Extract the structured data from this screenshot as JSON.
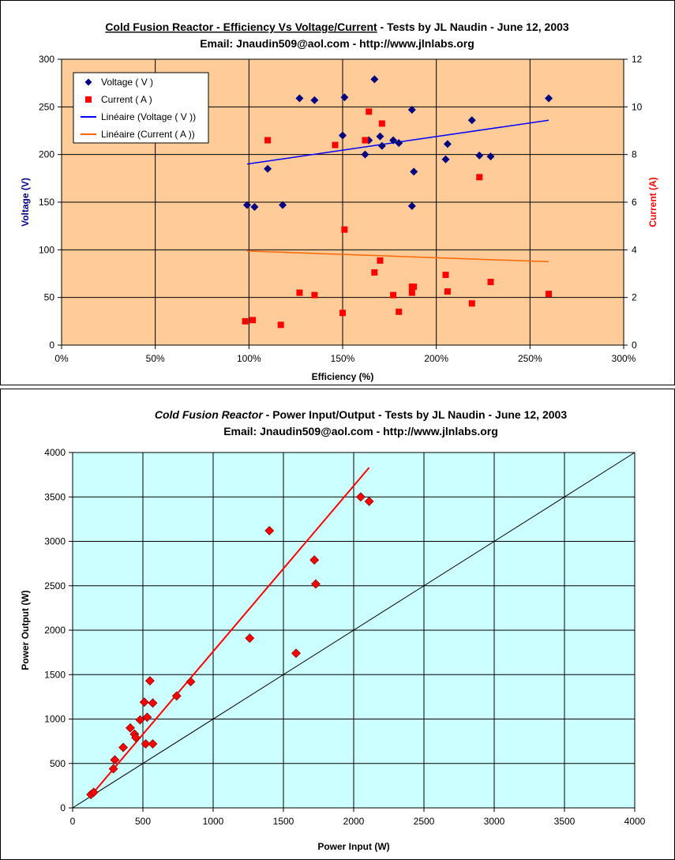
{
  "chart_data": [
    {
      "type": "scatter",
      "title_parts": [
        {
          "text": "Cold Fusion Reactor - Efficiency Vs Voltage/Current",
          "style": "underline"
        },
        {
          "text": " - Tests by JL Naudin - June 12, 2003",
          "style": "normal"
        }
      ],
      "subtitle": "Email: Jnaudin509@aol.com - http://www.jlnlabs.org",
      "xlabel": "Efficiency (%)",
      "ylabel": "Voltage (V)",
      "y2label": "Current (A)",
      "xlim": [
        0,
        300
      ],
      "ylim": [
        0,
        300
      ],
      "y2lim": [
        0,
        12
      ],
      "xticks": [
        0,
        50,
        100,
        150,
        200,
        250,
        300
      ],
      "xtick_labels": [
        "0%",
        "50%",
        "100%",
        "150%",
        "200%",
        "250%",
        "300%"
      ],
      "yticks": [
        0,
        50,
        100,
        150,
        200,
        250,
        300
      ],
      "y2ticks": [
        0,
        2,
        4,
        6,
        8,
        10,
        12
      ],
      "grid": true,
      "plot_bg": "#FFCC99",
      "legend_position": "top-left",
      "series": [
        {
          "name": "Voltage ( V )",
          "axis": "y",
          "marker": "diamond",
          "color": "#000080",
          "x": [
            99,
            103,
            110,
            118,
            127,
            135,
            150,
            151,
            162,
            164,
            167,
            170,
            171,
            177,
            180,
            187,
            187,
            188,
            205,
            206,
            219,
            223,
            229,
            260
          ],
          "y": [
            147,
            145,
            185,
            147,
            259,
            257,
            220,
            260,
            200,
            215,
            279,
            219,
            209,
            215,
            212,
            146,
            247,
            182,
            195,
            211,
            236,
            199,
            198,
            259
          ]
        },
        {
          "name": "Current ( A )",
          "axis": "y2",
          "marker": "square",
          "color": "#FF0000",
          "x": [
            98,
            102,
            110,
            117,
            127,
            135,
            146,
            150,
            151,
            162,
            164,
            167,
            170,
            171,
            177,
            180,
            187,
            187,
            188,
            205,
            206,
            219,
            223,
            229,
            260
          ],
          "y": [
            1.0,
            1.05,
            8.6,
            0.85,
            2.2,
            2.1,
            8.4,
            1.35,
            4.85,
            8.6,
            9.8,
            3.05,
            3.55,
            9.3,
            2.1,
            1.4,
            2.45,
            2.2,
            2.45,
            2.95,
            2.25,
            1.75,
            7.05,
            2.65,
            2.15
          ]
        },
        {
          "name": "Linéaire (Voltage ( V ))",
          "axis": "y",
          "type": "trendline",
          "color": "#0000FF",
          "x": [
            99,
            260
          ],
          "y": [
            190,
            236
          ]
        },
        {
          "name": "Linéaire (Current ( A ))",
          "axis": "y2",
          "type": "trendline",
          "color": "#FF6600",
          "x": [
            99,
            260
          ],
          "y": [
            3.95,
            3.5
          ]
        }
      ]
    },
    {
      "type": "scatter",
      "title_parts": [
        {
          "text": "Cold Fusion Reactor",
          "style": "italic"
        },
        {
          "text": "  - Power Input/Output - Tests by JL Naudin - June 12, 2003",
          "style": "normal"
        }
      ],
      "subtitle": "Email: Jnaudin509@aol.com - http://www.jlnlabs.org",
      "xlabel": "Power Input (W)",
      "ylabel": "Power Output (W)",
      "xlim": [
        0,
        4000
      ],
      "ylim": [
        0,
        4000
      ],
      "xticks": [
        0,
        500,
        1000,
        1500,
        2000,
        2500,
        3000,
        3500,
        4000
      ],
      "yticks": [
        0,
        500,
        1000,
        1500,
        2000,
        2500,
        3000,
        3500,
        4000
      ],
      "grid": true,
      "plot_bg": "#CCFFFF",
      "series": [
        {
          "marker": "diamond",
          "color": "#FF0000",
          "x": [
            130,
            150,
            290,
            300,
            360,
            410,
            440,
            450,
            480,
            510,
            520,
            530,
            550,
            570,
            570,
            740,
            840,
            1260,
            1400,
            1590,
            1720,
            1730,
            2050,
            2110
          ],
          "y": [
            150,
            175,
            440,
            540,
            680,
            900,
            830,
            790,
            990,
            1190,
            720,
            1020,
            1430,
            720,
            1180,
            1260,
            1420,
            1910,
            3120,
            1740,
            2790,
            2520,
            3500,
            3450
          ]
        },
        {
          "type": "trendline",
          "color": "#FF0000",
          "x": [
            120,
            2110
          ],
          "y": [
            120,
            3830
          ]
        },
        {
          "type": "reference_line",
          "color": "#000000",
          "x": [
            0,
            4000
          ],
          "y": [
            0,
            4000
          ]
        }
      ]
    }
  ]
}
